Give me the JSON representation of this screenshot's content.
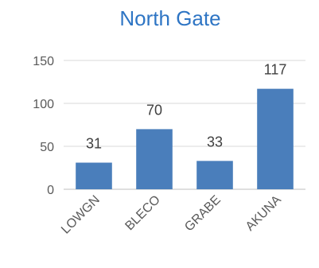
{
  "chart_data": {
    "type": "bar",
    "title": "North Gate",
    "categories": [
      "LOWGN",
      "BLECO",
      "GRABE",
      "AKUNA"
    ],
    "values": [
      31,
      70,
      33,
      117
    ],
    "data_labels": [
      "31",
      "70",
      "33",
      "117"
    ],
    "yticks": [
      "0",
      "50",
      "100",
      "150"
    ],
    "ylim": [
      0,
      150
    ],
    "xlabel": "",
    "ylabel": "",
    "grid": true,
    "legend": "none",
    "bar_color": "#4a7ebb",
    "title_color": "#2e75c4",
    "grid_color": "#d9d9d9"
  }
}
